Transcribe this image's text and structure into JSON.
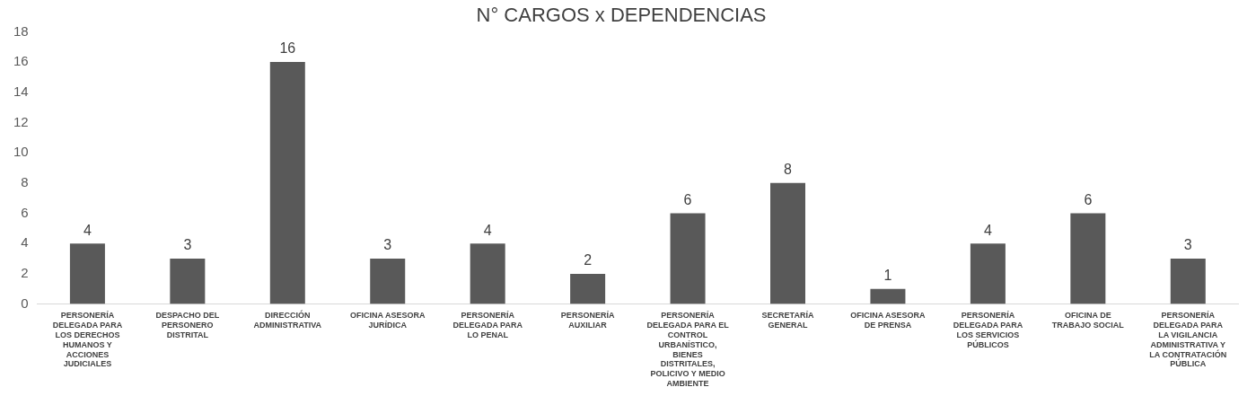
{
  "chart_data": {
    "type": "bar",
    "title": "N° CARGOS x DEPENDENCIAS",
    "categories": [
      "PERSONERÍA DELEGADA PARA LOS DERECHOS HUMANOS Y ACCIONES JUDICIALES",
      "DESPACHO DEL PERSONERO DISTRITAL",
      "DIRECCIÓN ADMINISTRATIVA",
      "OFICINA ASESORA JURÍDICA",
      "PERSONERÍA DELEGADA PARA LO PENAL",
      "PERSONERÍA AUXILIAR",
      "PERSONERÍA DELEGADA PARA EL CONTROL URBANÍSTICO, BIENES DISTRITALES, POLICIVO Y MEDIO AMBIENTE",
      "SECRETARÍA GENERAL",
      "OFICINA ASESORA DE PRENSA",
      "PERSONERÍA DELEGADA PARA LOS SERVICIOS PÚBLICOS",
      "OFICINA DE TRABAJO SOCIAL",
      "PERSONERÍA DELEGADA PARA LA VIGILANCIA ADMINISTRATIVA Y LA CONTRATACIÓN PÚBLICA"
    ],
    "values": [
      4,
      3,
      16,
      3,
      4,
      2,
      6,
      8,
      1,
      4,
      6,
      3
    ],
    "color": "#595959",
    "ylim": [
      0,
      18
    ],
    "yticks": [
      0,
      2,
      4,
      6,
      8,
      10,
      12,
      14,
      16,
      18
    ],
    "data_labels": true
  }
}
